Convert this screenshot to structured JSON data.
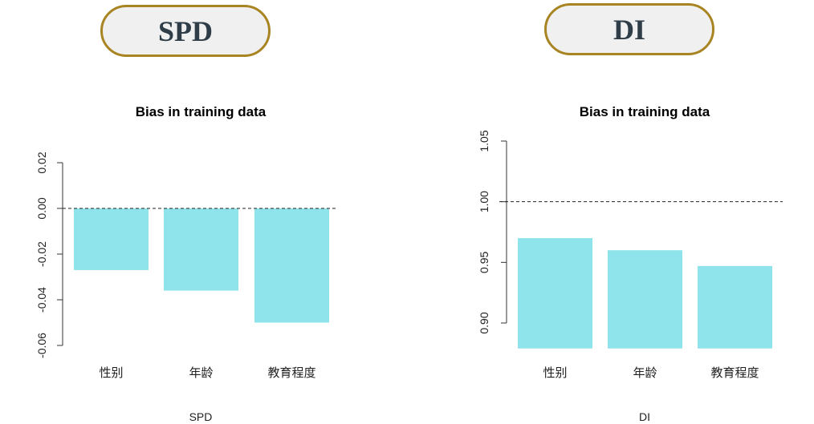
{
  "badges": {
    "left": "SPD",
    "right": "DI"
  },
  "colors": {
    "bar": "#8fe4ec",
    "badge_border": "#a88422",
    "badge_fill": "#f0f0f0",
    "badge_text": "#2e3d48"
  },
  "chart_data": [
    {
      "type": "bar",
      "title": "Bias in training data",
      "xlabel": "SPD",
      "ylabel": "",
      "categories": [
        "性别",
        "年龄",
        "教育程度"
      ],
      "values": [
        -0.027,
        -0.036,
        -0.05
      ],
      "baseline": 0,
      "reference_line": 0,
      "ylim": [
        -0.06,
        0.02
      ],
      "yticks": [
        "-0.06",
        "-0.04",
        "-0.02",
        "0.00",
        "0.02"
      ],
      "grid": false
    },
    {
      "type": "bar",
      "title": "Bias in training data",
      "xlabel": "DI",
      "ylabel": "",
      "categories": [
        "性别",
        "年龄",
        "教育程度"
      ],
      "values": [
        0.97,
        0.96,
        0.947
      ],
      "baseline": 0.879,
      "reference_line": 1.0,
      "ylim": [
        0.9,
        1.05
      ],
      "yticks": [
        "0.90",
        "0.95",
        "1.00",
        "1.05"
      ],
      "grid": false
    }
  ]
}
